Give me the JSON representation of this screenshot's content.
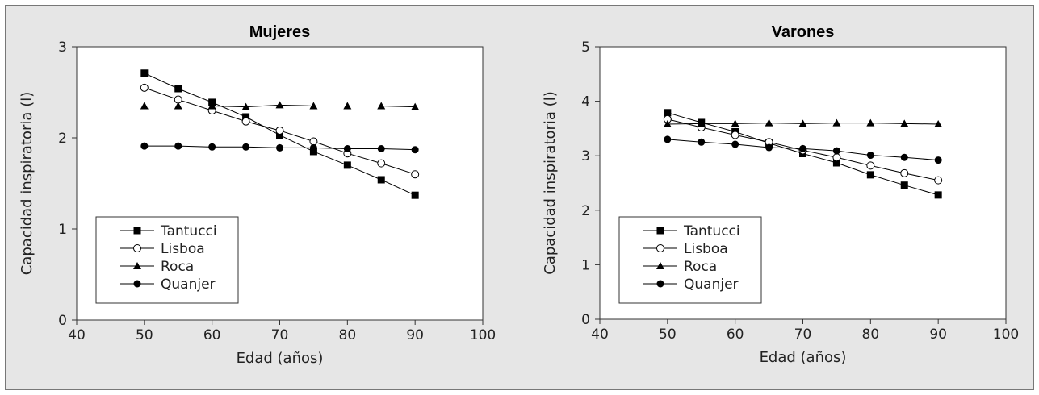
{
  "chart_data": [
    {
      "type": "line",
      "title": "Mujeres",
      "xlabel": "Edad (años)",
      "ylabel": "Capacidad inspiratoria (l)",
      "xlim": [
        40,
        100
      ],
      "ylim": [
        0,
        3
      ],
      "xticks": [
        40,
        50,
        60,
        70,
        80,
        90,
        100
      ],
      "yticks": [
        0,
        1,
        2,
        3
      ],
      "x": [
        50,
        55,
        60,
        65,
        70,
        75,
        80,
        85,
        90
      ],
      "grid": false,
      "legend_position": "lower-left",
      "series": [
        {
          "name": "Tantucci",
          "marker": "square-filled",
          "values": [
            2.71,
            2.54,
            2.39,
            2.23,
            2.03,
            1.85,
            1.7,
            1.54,
            1.37
          ]
        },
        {
          "name": "Lisboa",
          "marker": "circle-open",
          "values": [
            2.55,
            2.42,
            2.3,
            2.18,
            2.08,
            1.96,
            1.83,
            1.72,
            1.6
          ]
        },
        {
          "name": "Roca",
          "marker": "triangle-filled",
          "values": [
            2.35,
            2.35,
            2.35,
            2.34,
            2.36,
            2.35,
            2.35,
            2.35,
            2.34
          ]
        },
        {
          "name": "Quanjer",
          "marker": "circle-filled",
          "values": [
            1.91,
            1.91,
            1.9,
            1.9,
            1.89,
            1.89,
            1.88,
            1.88,
            1.87
          ]
        }
      ]
    },
    {
      "type": "line",
      "title": "Varones",
      "xlabel": "Edad (años)",
      "ylabel": "Capacidad inspiratoria (l)",
      "xlim": [
        40,
        100
      ],
      "ylim": [
        0,
        5
      ],
      "xticks": [
        40,
        50,
        60,
        70,
        80,
        90,
        100
      ],
      "yticks": [
        0,
        1,
        2,
        3,
        4,
        5
      ],
      "x": [
        50,
        55,
        60,
        65,
        70,
        75,
        80,
        85,
        90
      ],
      "grid": false,
      "legend_position": "lower-left",
      "series": [
        {
          "name": "Tantucci",
          "marker": "square-filled",
          "values": [
            3.79,
            3.61,
            3.44,
            3.23,
            3.04,
            2.87,
            2.65,
            2.46,
            2.28
          ]
        },
        {
          "name": "Lisboa",
          "marker": "circle-open",
          "values": [
            3.67,
            3.52,
            3.38,
            3.25,
            3.1,
            2.97,
            2.82,
            2.68,
            2.55
          ]
        },
        {
          "name": "Roca",
          "marker": "triangle-filled",
          "values": [
            3.58,
            3.59,
            3.59,
            3.6,
            3.59,
            3.6,
            3.6,
            3.59,
            3.58
          ]
        },
        {
          "name": "Quanjer",
          "marker": "circle-filled",
          "values": [
            3.3,
            3.25,
            3.21,
            3.15,
            3.13,
            3.09,
            3.01,
            2.97,
            2.92
          ]
        }
      ]
    }
  ]
}
